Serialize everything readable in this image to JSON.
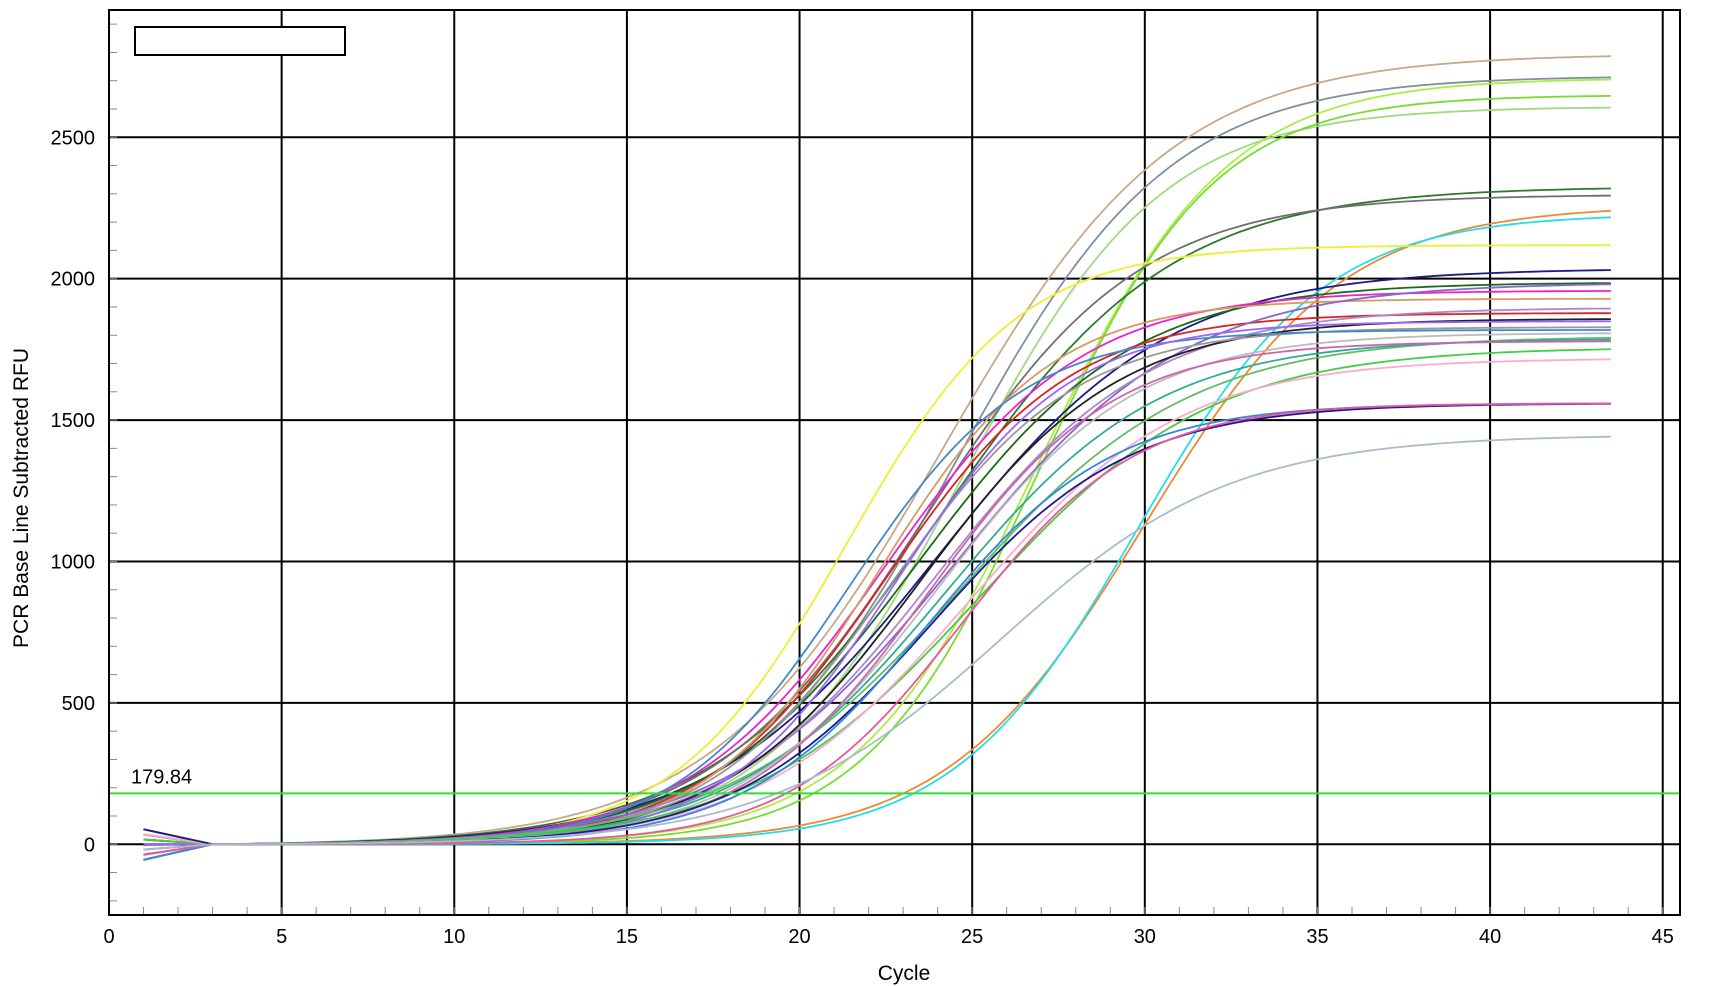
{
  "chart_data": {
    "type": "line",
    "title": "",
    "xlabel": "Cycle",
    "ylabel": "PCR Base Line Subtracted RFU",
    "xlim": [
      0,
      45.5
    ],
    "ylim": [
      -250,
      2950
    ],
    "x_ticks": [
      0,
      5,
      10,
      15,
      20,
      25,
      30,
      35,
      40,
      45
    ],
    "y_ticks": [
      0,
      500,
      1000,
      1500,
      2000,
      2500
    ],
    "grid": true,
    "legend": "top-left (empty box)",
    "threshold": {
      "value": 179.84,
      "label": "179.84",
      "color": "#33dd33"
    },
    "cycles_range": [
      1,
      43.5
    ],
    "series": [
      {
        "color": "#c8a888",
        "plateau": 2800,
        "ct": 15.2
      },
      {
        "color": "#7f8fa0",
        "plateau": 2720,
        "ct": 16.4
      },
      {
        "color": "#9fd87f",
        "plateau": 2610,
        "ct": 17.3
      },
      {
        "color": "#aaee44",
        "plateau": 2710,
        "ct": 19.9
      },
      {
        "color": "#77dd33",
        "plateau": 2650,
        "ct": 20.4
      },
      {
        "color": "#2d7a2d",
        "plateau": 2330,
        "ct": 15.8
      },
      {
        "color": "#707070",
        "plateau": 2300,
        "ct": 16.0
      },
      {
        "color": "#ee8833",
        "plateau": 2260,
        "ct": 23.0
      },
      {
        "color": "#22ddee",
        "plateau": 2230,
        "ct": 23.3
      },
      {
        "color": "#eeee33",
        "plateau": 2120,
        "ct": 15.4
      },
      {
        "color": "#1a1a80",
        "plateau": 2040,
        "ct": 16.2
      },
      {
        "color": "#1a6a1a",
        "plateau": 1990,
        "ct": 16.3
      },
      {
        "color": "#ee22cc",
        "plateau": 1960,
        "ct": 15.9
      },
      {
        "color": "#dd2222",
        "plateau": 1880,
        "ct": 16.5
      },
      {
        "color": "#d59a66",
        "plateau": 1930,
        "ct": 16.6
      },
      {
        "color": "#8866cc",
        "plateau": 1990,
        "ct": 16.8
      },
      {
        "color": "#aa88cc",
        "plateau": 1900,
        "ct": 17.0
      },
      {
        "color": "#222222",
        "plateau": 1860,
        "ct": 17.1
      },
      {
        "color": "#999999",
        "plateau": 1830,
        "ct": 16.7
      },
      {
        "color": "#4488cc",
        "plateau": 1820,
        "ct": 15.9
      },
      {
        "color": "#66bb66",
        "plateau": 1800,
        "ct": 17.3
      },
      {
        "color": "#33aa99",
        "plateau": 1790,
        "ct": 17.5
      },
      {
        "color": "#bbbbbb",
        "plateau": 1810,
        "ct": 17.7
      },
      {
        "color": "#cc66aa",
        "plateau": 1780,
        "ct": 17.9
      },
      {
        "color": "#9966ff",
        "plateau": 1850,
        "ct": 17.2
      },
      {
        "color": "#44cc44",
        "plateau": 1760,
        "ct": 18.0
      },
      {
        "color": "#ffaacc",
        "plateau": 1720,
        "ct": 18.3
      },
      {
        "color": "#1a1a90",
        "plateau": 1560,
        "ct": 18.0
      },
      {
        "color": "#3388dd",
        "plateau": 1560,
        "ct": 18.3
      },
      {
        "color": "#ee5599",
        "plateau": 1560,
        "ct": 19.6
      },
      {
        "color": "#aabbcc",
        "plateau": 1450,
        "ct": 19.3
      }
    ]
  }
}
